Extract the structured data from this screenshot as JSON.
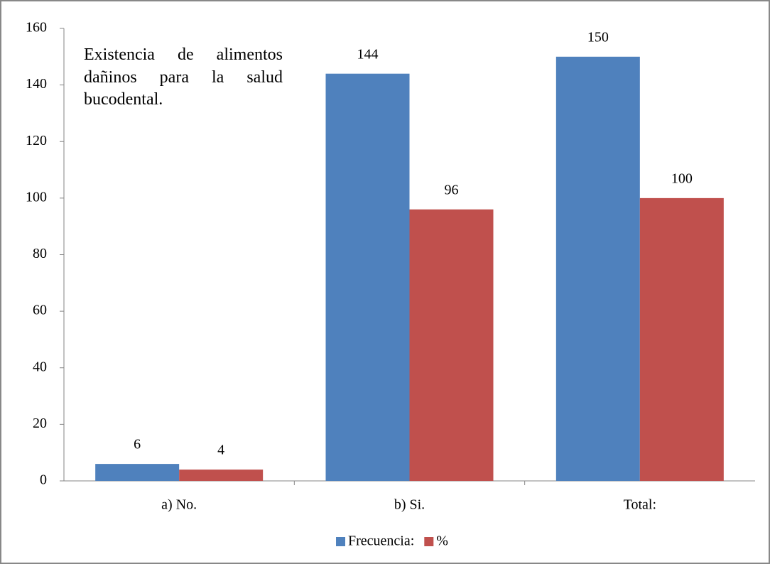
{
  "chart_data": {
    "type": "bar",
    "title": "Existencia de alimentos dañinos para la salud bucodental.",
    "categories": [
      "a) No.",
      "b) Si.",
      "Total:"
    ],
    "series": [
      {
        "name": "Frecuencia:",
        "color": "#4f81bd",
        "values": [
          6,
          144,
          150
        ]
      },
      {
        "name": "%",
        "color": "#c0504d",
        "values": [
          4,
          96,
          100
        ]
      }
    ],
    "ylim": [
      0,
      160
    ],
    "yticks": [
      0,
      20,
      40,
      60,
      80,
      100,
      120,
      140,
      160
    ],
    "legend": "bottom"
  }
}
